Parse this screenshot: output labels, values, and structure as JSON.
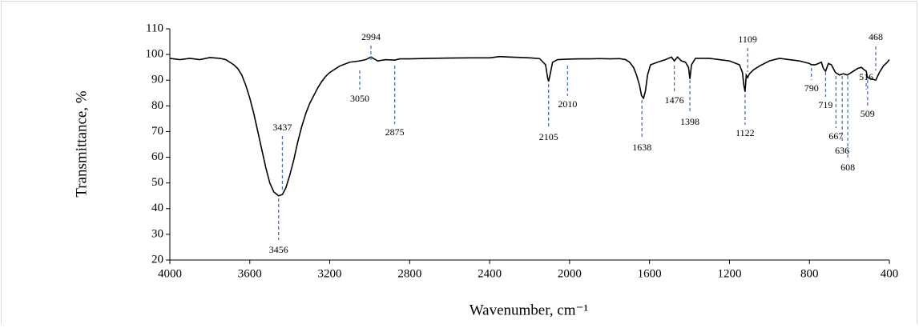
{
  "chart_data": {
    "type": "line",
    "x_label": "Wavenumber, cm⁻¹",
    "y_label": "Transmittance, %",
    "xlim": [
      4000,
      400
    ],
    "xticks": [
      4000,
      3600,
      3200,
      2800,
      2400,
      2000,
      1600,
      1200,
      800,
      400
    ],
    "ylim": [
      20,
      110
    ],
    "yticks": [
      20,
      30,
      40,
      50,
      60,
      70,
      80,
      90,
      100,
      110
    ],
    "x": [
      4000,
      3950,
      3900,
      3850,
      3800,
      3750,
      3720,
      3700,
      3680,
      3660,
      3640,
      3620,
      3600,
      3580,
      3560,
      3540,
      3520,
      3500,
      3480,
      3456,
      3437,
      3420,
      3400,
      3380,
      3360,
      3340,
      3320,
      3300,
      3280,
      3260,
      3240,
      3220,
      3200,
      3150,
      3100,
      3050,
      3020,
      2994,
      2960,
      2920,
      2875,
      2850,
      2800,
      2700,
      2600,
      2500,
      2400,
      2350,
      2300,
      2200,
      2150,
      2120,
      2110,
      2105,
      2098,
      2085,
      2060,
      2010,
      1950,
      1900,
      1850,
      1800,
      1750,
      1720,
      1700,
      1680,
      1665,
      1650,
      1640,
      1630,
      1620,
      1610,
      1595,
      1560,
      1520,
      1490,
      1476,
      1460,
      1440,
      1420,
      1405,
      1398,
      1390,
      1370,
      1300,
      1250,
      1200,
      1150,
      1135,
      1128,
      1122,
      1116,
      1109,
      1100,
      1080,
      1050,
      1000,
      950,
      900,
      850,
      800,
      790,
      770,
      740,
      730,
      719,
      705,
      690,
      670,
      650,
      630,
      610,
      590,
      560,
      540,
      525,
      516,
      509,
      490,
      468,
      450,
      430,
      410,
      400
    ],
    "series": [
      {
        "color": "#000000",
        "values": [
          98.5,
          98,
          98.5,
          98,
          98.8,
          98.5,
          98,
          97,
          96,
          94.5,
          92,
          88,
          83,
          77,
          70,
          63,
          56,
          50,
          46.5,
          45,
          45.5,
          48,
          53,
          59,
          66,
          72,
          77,
          81,
          84,
          87,
          89.5,
          91.5,
          93,
          95.5,
          97,
          97.5,
          98,
          99,
          97.5,
          98,
          97.8,
          98.3,
          98.3,
          98.5,
          98.6,
          98.7,
          98.7,
          99.2,
          99,
          98.7,
          98.4,
          96,
          91,
          89.5,
          92,
          97,
          98,
          98.2,
          98.3,
          98.3,
          98.4,
          98.3,
          98.4,
          98,
          97,
          95,
          92,
          88,
          84,
          83,
          86,
          92,
          96,
          97,
          98,
          99,
          97.5,
          99,
          97.5,
          97,
          95,
          90.5,
          96,
          98.5,
          98.5,
          98,
          97.5,
          96,
          93,
          88,
          85.5,
          92,
          91,
          92.5,
          94,
          95.5,
          97.5,
          98.5,
          98,
          97.5,
          96.5,
          96,
          96,
          97,
          94.5,
          93.5,
          96.5,
          96,
          93,
          92,
          92.5,
          92,
          93,
          94.5,
          95,
          94,
          93.5,
          91,
          90.5,
          90,
          93,
          95.5,
          97,
          98
        ]
      }
    ],
    "annotation_color": "#4472c4",
    "annotations": [
      {
        "x": 3437
      },
      {
        "x": 3456
      },
      {
        "x": 2994
      },
      {
        "x": 3050
      },
      {
        "x": 2875
      },
      {
        "x": 2105
      },
      {
        "x": 2010
      },
      {
        "x": 1638
      },
      {
        "x": 1476
      },
      {
        "x": 1398
      },
      {
        "x": 1122
      },
      {
        "x": 1109
      },
      {
        "x": 790
      },
      {
        "x": 719
      },
      {
        "x": 667
      },
      {
        "x": 636
      },
      {
        "x": 608
      },
      {
        "x": 516
      },
      {
        "x": 509
      },
      {
        "x": 468
      }
    ]
  }
}
